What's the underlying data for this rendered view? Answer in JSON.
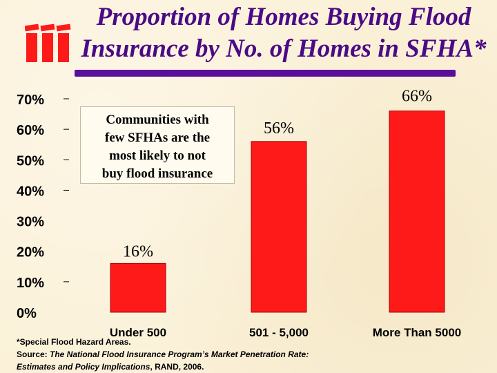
{
  "title_line1": "Proportion of Homes Buying Flood",
  "title_line2": "Insurance by No. of Homes in SFHA*",
  "logo_icon": "iii-logo-icon",
  "annotation": [
    "Communities with",
    "few SFHAs are the",
    "most likely to not",
    "buy flood insurance"
  ],
  "footnote": {
    "line1": "*Special Flood Hazard Areas.",
    "source_prefix": "Source: ",
    "source_title_a": "The National Flood Insurance Program’s Market Penetration Rate:",
    "source_title_b": "Estimates and Policy Implications",
    "source_suffix": ", RAND, 2006."
  },
  "colors": {
    "bar": "#ff1a1a",
    "title": "#4b0a86",
    "rule": "#5a0f9a"
  },
  "chart_data": {
    "type": "bar",
    "categories": [
      "Under 500",
      "501 - 5,000",
      "More Than 5000"
    ],
    "values": [
      16,
      56,
      66
    ],
    "data_labels": [
      "16%",
      "56%",
      "66%"
    ],
    "y_ticks": [
      "0%",
      "10%",
      "20%",
      "30%",
      "40%",
      "50%",
      "60%",
      "70%"
    ],
    "ylim": [
      0,
      70
    ],
    "grid": false,
    "legend": false
  }
}
